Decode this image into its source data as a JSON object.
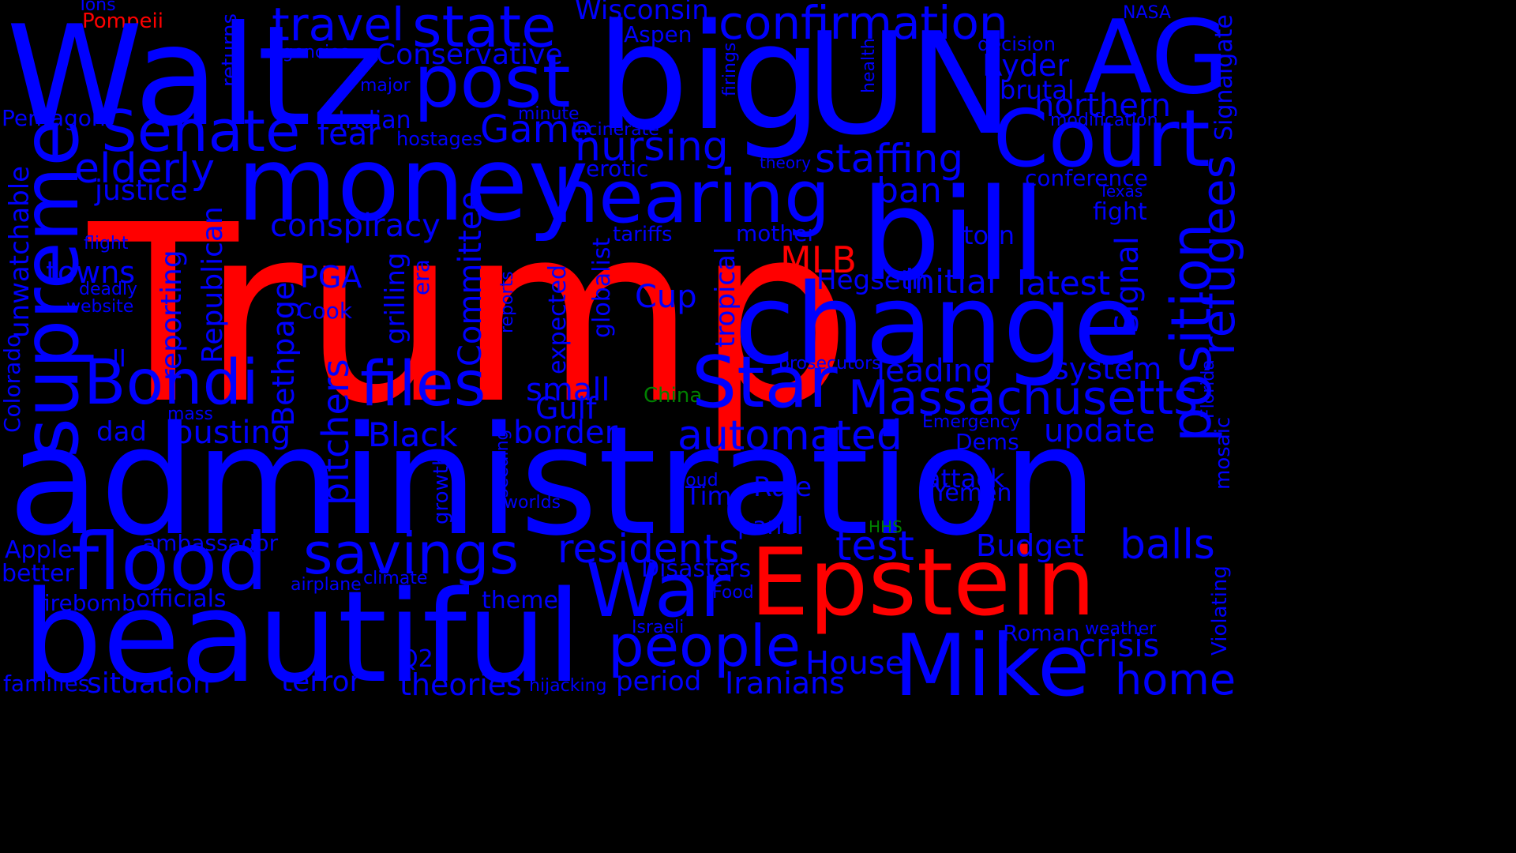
{
  "colors": {
    "background": "#000000",
    "primary": "#0000ff",
    "highlight": "#ff0000",
    "accent": "#008000"
  },
  "words": [
    {
      "text": "Trump",
      "color": "highlight"
    },
    {
      "text": "administration",
      "color": "primary"
    },
    {
      "text": "Epstein",
      "color": "highlight"
    },
    {
      "text": "MLB",
      "color": "highlight"
    },
    {
      "text": "Pompeii",
      "color": "highlight"
    },
    {
      "text": "China",
      "color": "accent"
    },
    {
      "text": "HHS",
      "color": "accent"
    },
    {
      "text": "Waltz",
      "color": "primary"
    },
    {
      "text": "big",
      "color": "primary"
    },
    {
      "text": "UN",
      "color": "primary"
    },
    {
      "text": "AG",
      "color": "primary"
    },
    {
      "text": "money",
      "color": "primary"
    },
    {
      "text": "bill",
      "color": "primary"
    },
    {
      "text": "change",
      "color": "primary"
    },
    {
      "text": "beautiful",
      "color": "primary"
    },
    {
      "text": "Mike",
      "color": "primary"
    },
    {
      "text": "flood",
      "color": "primary"
    },
    {
      "text": "War",
      "color": "primary"
    },
    {
      "text": "Court",
      "color": "primary"
    },
    {
      "text": "hearing",
      "color": "primary"
    },
    {
      "text": "post",
      "color": "primary"
    },
    {
      "text": "Star",
      "color": "primary"
    },
    {
      "text": "Bondi",
      "color": "primary"
    },
    {
      "text": "files",
      "color": "primary"
    },
    {
      "text": "Senate",
      "color": "primary"
    },
    {
      "text": "state",
      "color": "primary"
    },
    {
      "text": "travel",
      "color": "primary"
    },
    {
      "text": "confirmation",
      "color": "primary"
    },
    {
      "text": "savings",
      "color": "primary"
    },
    {
      "text": "people",
      "color": "primary"
    },
    {
      "text": "Massachusetts",
      "color": "primary"
    },
    {
      "text": "automated",
      "color": "primary"
    },
    {
      "text": "residents",
      "color": "primary"
    },
    {
      "text": "test",
      "color": "primary"
    },
    {
      "text": "balls",
      "color": "primary"
    },
    {
      "text": "home",
      "color": "primary"
    },
    {
      "text": "House",
      "color": "primary"
    },
    {
      "text": "crisis",
      "color": "primary"
    },
    {
      "text": "nursing",
      "color": "primary"
    },
    {
      "text": "elderly",
      "color": "primary"
    },
    {
      "text": "staffing",
      "color": "primary"
    },
    {
      "text": "Game",
      "color": "primary"
    },
    {
      "text": "fear",
      "color": "primary"
    },
    {
      "text": "conspiracy",
      "color": "primary"
    },
    {
      "text": "ban",
      "color": "primary"
    },
    {
      "text": "initial",
      "color": "primary"
    },
    {
      "text": "latest",
      "color": "primary"
    },
    {
      "text": "Hegseth",
      "color": "primary"
    },
    {
      "text": "Cup",
      "color": "primary"
    },
    {
      "text": "PGA",
      "color": "primary"
    },
    {
      "text": "towns",
      "color": "primary"
    },
    {
      "text": "justice",
      "color": "primary"
    },
    {
      "text": "leading",
      "color": "primary"
    },
    {
      "text": "system",
      "color": "primary"
    },
    {
      "text": "update",
      "color": "primary"
    },
    {
      "text": "small",
      "color": "primary"
    },
    {
      "text": "Gulf",
      "color": "primary"
    },
    {
      "text": "border",
      "color": "primary"
    },
    {
      "text": "Black",
      "color": "primary"
    },
    {
      "text": "ousting",
      "color": "primary"
    },
    {
      "text": "dad",
      "color": "primary"
    },
    {
      "text": "Budget",
      "color": "primary"
    },
    {
      "text": "Disasters",
      "color": "primary"
    },
    {
      "text": "panel",
      "color": "primary"
    },
    {
      "text": "Rule",
      "color": "primary"
    },
    {
      "text": "Tim",
      "color": "primary"
    },
    {
      "text": "attack",
      "color": "primary"
    },
    {
      "text": "Yemen",
      "color": "primary"
    },
    {
      "text": "Dems",
      "color": "primary"
    },
    {
      "text": "Ryder",
      "color": "primary"
    },
    {
      "text": "northern",
      "color": "primary"
    },
    {
      "text": "brutal",
      "color": "primary"
    },
    {
      "text": "Conservative",
      "color": "primary"
    },
    {
      "text": "Wisconsin",
      "color": "primary"
    },
    {
      "text": "Aspen",
      "color": "primary"
    },
    {
      "text": "Indian",
      "color": "primary"
    },
    {
      "text": "hostages",
      "color": "primary"
    },
    {
      "text": "minute",
      "color": "primary"
    },
    {
      "text": "Incinerate",
      "color": "primary"
    },
    {
      "text": "erotic",
      "color": "primary"
    },
    {
      "text": "theory",
      "color": "primary"
    },
    {
      "text": "tariffs",
      "color": "primary"
    },
    {
      "text": "mother",
      "color": "primary"
    },
    {
      "text": "torn",
      "color": "primary"
    },
    {
      "text": "fight",
      "color": "primary"
    },
    {
      "text": "Texas",
      "color": "primary"
    },
    {
      "text": "conference",
      "color": "primary"
    },
    {
      "text": "modification",
      "color": "primary"
    },
    {
      "text": "decision",
      "color": "primary"
    },
    {
      "text": "NASA",
      "color": "primary"
    },
    {
      "text": "Tons",
      "color": "primary"
    },
    {
      "text": "agencies",
      "color": "primary"
    },
    {
      "text": "major",
      "color": "primary"
    },
    {
      "text": "Pentagon",
      "color": "primary"
    },
    {
      "text": "flight",
      "color": "primary"
    },
    {
      "text": "deadly",
      "color": "primary"
    },
    {
      "text": "website",
      "color": "primary"
    },
    {
      "text": "II",
      "color": "primary"
    },
    {
      "text": "Cook",
      "color": "primary"
    },
    {
      "text": "mass",
      "color": "primary"
    },
    {
      "text": "Apple",
      "color": "primary"
    },
    {
      "text": "better",
      "color": "primary"
    },
    {
      "text": "ambassador",
      "color": "primary"
    },
    {
      "text": "firebomb",
      "color": "primary"
    },
    {
      "text": "officials",
      "color": "primary"
    },
    {
      "text": "airplane",
      "color": "primary"
    },
    {
      "text": "climate",
      "color": "primary"
    },
    {
      "text": "theme",
      "color": "primary"
    },
    {
      "text": "Israeli",
      "color": "primary"
    },
    {
      "text": "Food",
      "color": "primary"
    },
    {
      "text": "prosecutors",
      "color": "primary"
    },
    {
      "text": "Emergency",
      "color": "primary"
    },
    {
      "text": "cloud",
      "color": "primary"
    },
    {
      "text": "worlds",
      "color": "primary"
    },
    {
      "text": "Q2",
      "color": "primary"
    },
    {
      "text": "families",
      "color": "primary"
    },
    {
      "text": "situation",
      "color": "primary"
    },
    {
      "text": "terror",
      "color": "primary"
    },
    {
      "text": "theories",
      "color": "primary"
    },
    {
      "text": "hijacking",
      "color": "primary"
    },
    {
      "text": "period",
      "color": "primary"
    },
    {
      "text": "Iranians",
      "color": "primary"
    },
    {
      "text": "Roman",
      "color": "primary"
    },
    {
      "text": "weather",
      "color": "primary"
    },
    {
      "text": "supreme",
      "color": "primary"
    },
    {
      "text": "unwatchable",
      "color": "primary"
    },
    {
      "text": "Colorado",
      "color": "primary"
    },
    {
      "text": "reporting",
      "color": "primary"
    },
    {
      "text": "Republican",
      "color": "primary"
    },
    {
      "text": "pitchers",
      "color": "primary"
    },
    {
      "text": "Bethpage",
      "color": "primary"
    },
    {
      "text": "grilling",
      "color": "primary"
    },
    {
      "text": "era",
      "color": "primary"
    },
    {
      "text": "reports",
      "color": "primary"
    },
    {
      "text": "Committee",
      "color": "primary"
    },
    {
      "text": "expected",
      "color": "primary"
    },
    {
      "text": "globalist",
      "color": "primary"
    },
    {
      "text": "tropical",
      "color": "primary"
    },
    {
      "text": "growth",
      "color": "primary"
    },
    {
      "text": "seeding",
      "color": "primary"
    },
    {
      "text": "returns",
      "color": "primary"
    },
    {
      "text": "health",
      "color": "primary"
    },
    {
      "text": "firings",
      "color": "primary"
    },
    {
      "text": "position",
      "color": "primary"
    },
    {
      "text": "refugees",
      "color": "primary"
    },
    {
      "text": "Signal",
      "color": "primary"
    },
    {
      "text": "Signalgate",
      "color": "primary"
    },
    {
      "text": "Florida",
      "color": "primary"
    },
    {
      "text": "mosaic",
      "color": "primary"
    },
    {
      "text": "Violating",
      "color": "primary"
    }
  ]
}
